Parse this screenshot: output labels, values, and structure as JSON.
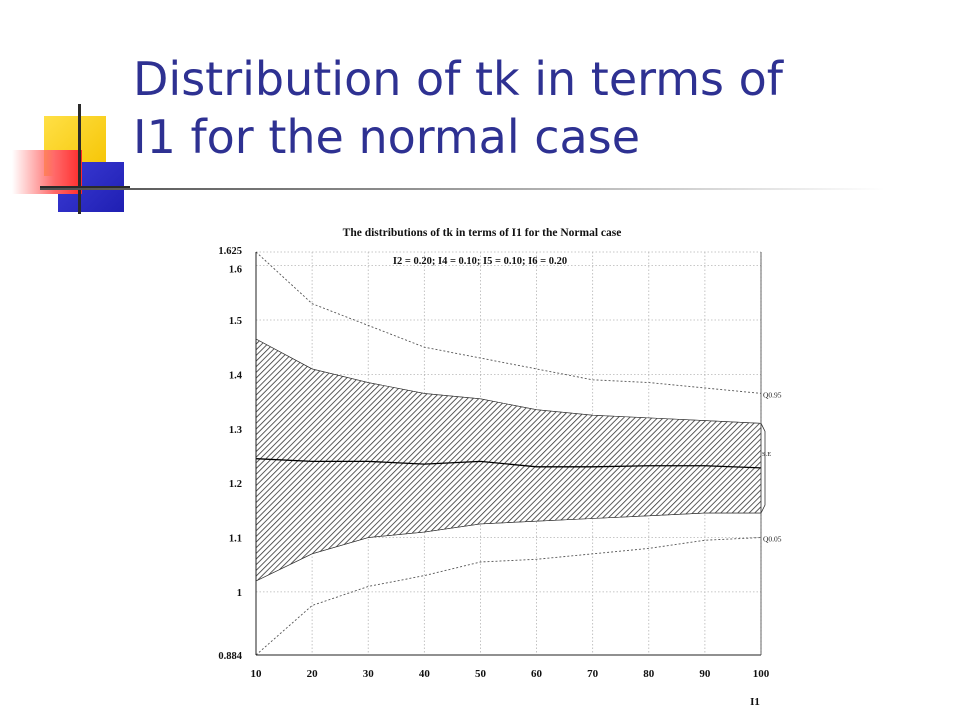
{
  "slide": {
    "title_line1": "Distribution of tk in terms of",
    "title_line2": "I1 for the normal case",
    "colors": {
      "title": "#2e3192",
      "accent_yellow": "#f5c300",
      "accent_blue": "#1f1fb2",
      "accent_red": "#ff2a2a"
    }
  },
  "chart_data": {
    "type": "area",
    "title": "The distributions of tk in terms of I1 for the Normal case",
    "subtitle": "I2 = 0.20; I4 = 0.10; I5 = 0.10; I6 = 0.20",
    "xlabel": "I1",
    "ylabel": "",
    "xlim": [
      10,
      100
    ],
    "ylim": [
      0.884,
      1.625
    ],
    "x_ticks": [
      10,
      20,
      30,
      40,
      50,
      60,
      70,
      80,
      90,
      100
    ],
    "y_ticks": [
      0.884,
      1,
      1.1,
      1.2,
      1.3,
      1.4,
      1.5,
      1.6,
      1.625
    ],
    "y_tick_labels": [
      "0.884",
      "1",
      "1.1",
      "1.2",
      "1.3",
      "1.4",
      "1.5",
      "1.6",
      "1.625"
    ],
    "grid": true,
    "x": [
      10,
      20,
      30,
      40,
      50,
      60,
      70,
      80,
      90,
      100
    ],
    "series": [
      {
        "name": "Q0.95",
        "values": [
          1.625,
          1.53,
          1.49,
          1.45,
          1.43,
          1.41,
          1.39,
          1.385,
          1.375,
          1.365
        ]
      },
      {
        "name": "",
        "values": [
          1.465,
          1.41,
          1.385,
          1.365,
          1.355,
          1.335,
          1.325,
          1.32,
          1.315,
          1.31
        ]
      },
      {
        "name": "",
        "values": [
          1.245,
          1.24,
          1.24,
          1.235,
          1.24,
          1.23,
          1.23,
          1.232,
          1.232,
          1.228
        ]
      },
      {
        "name": "",
        "values": [
          1.02,
          1.07,
          1.1,
          1.11,
          1.125,
          1.13,
          1.135,
          1.14,
          1.145,
          1.145
        ]
      },
      {
        "name": "Q0.05",
        "values": [
          0.884,
          0.975,
          1.01,
          1.03,
          1.055,
          1.06,
          1.07,
          1.08,
          1.095,
          1.1
        ]
      }
    ],
    "band_label": "S.E"
  }
}
